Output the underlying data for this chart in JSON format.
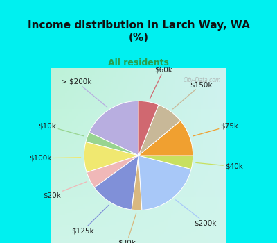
{
  "title": "Income distribution in Larch Way, WA\n(%)",
  "subtitle": "All residents",
  "title_fontsize": 11,
  "subtitle_fontsize": 9,
  "background_top": "#00f0f0",
  "chart_bg_color": "#e0f5ec",
  "labels": [
    "> $200k",
    "$10k",
    "$100k",
    "$20k",
    "$125k",
    "$30k",
    "$200k",
    "$40k",
    "$75k",
    "$150k",
    "$60k"
  ],
  "sizes": [
    18,
    3,
    9,
    5,
    13,
    3,
    20,
    4,
    11,
    8,
    6
  ],
  "colors": [
    "#b8aee0",
    "#98d490",
    "#f0e870",
    "#f0b8b8",
    "#8090d8",
    "#d8b880",
    "#a8c8f8",
    "#c8e060",
    "#f0a030",
    "#c8b898",
    "#d06870"
  ],
  "line_colors": [
    "#b8aee0",
    "#98d490",
    "#f0e870",
    "#f0b8b8",
    "#8090d8",
    "#d8b880",
    "#a8c8f8",
    "#c8e060",
    "#f0a030",
    "#c8b898",
    "#d06870"
  ],
  "startangle": 90,
  "label_fontsize": 7.5,
  "watermark": "City-Data.com",
  "label_text_positions": [
    [
      "> $200k",
      1.32,
      0.1
    ],
    [
      "$10k",
      1.32,
      0.0
    ],
    [
      "$100k",
      1.32,
      0.0
    ],
    [
      "$20k",
      1.32,
      0.0
    ],
    [
      "$125k",
      1.32,
      0.0
    ],
    [
      "$30k",
      1.32,
      0.0
    ],
    [
      "$200k",
      1.32,
      0.0
    ],
    [
      "$40k",
      1.32,
      0.0
    ],
    [
      "$75k",
      1.32,
      0.0
    ],
    [
      "$150k",
      1.32,
      0.0
    ],
    [
      "$60k",
      1.32,
      0.0
    ]
  ]
}
